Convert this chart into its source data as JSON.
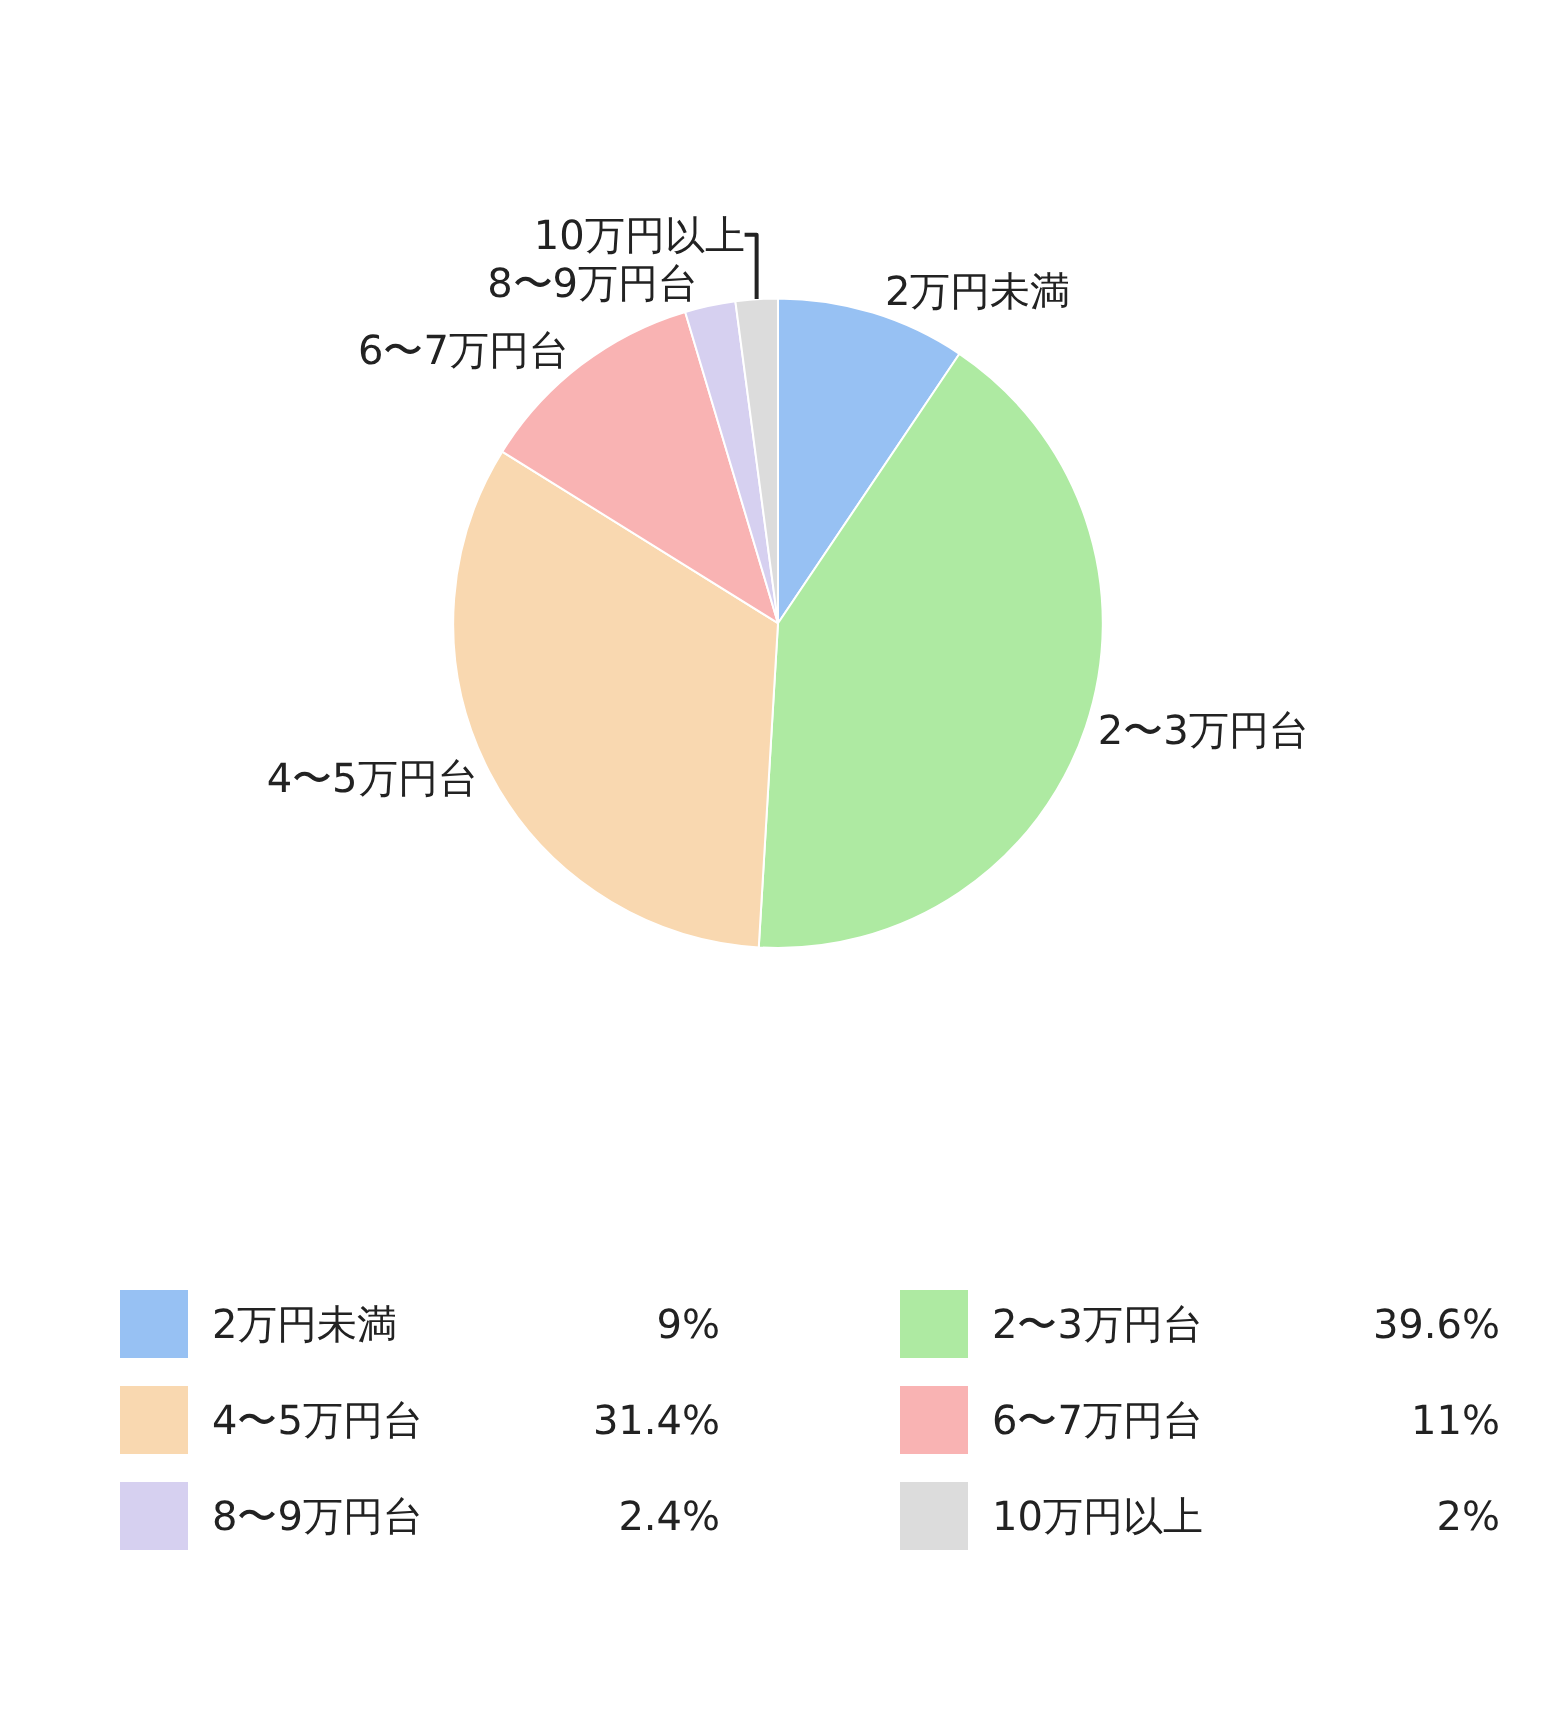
{
  "chart_data": {
    "type": "pie",
    "categories": [
      "2万円未満",
      "2〜3万円台",
      "4〜5万円台",
      "6〜7万円台",
      "8〜9万円台",
      "10万円以上"
    ],
    "values": [
      9,
      39.6,
      31.4,
      11,
      2.4,
      2
    ],
    "value_labels": [
      "9%",
      "39.6%",
      "31.4%",
      "11%",
      "2.4%",
      "2%"
    ],
    "colors": [
      "#97c1f3",
      "#aeeaa2",
      "#f9d8b0",
      "#f9b3b3",
      "#d6d0f0",
      "#dcdcdc"
    ],
    "legend": "bottom"
  }
}
